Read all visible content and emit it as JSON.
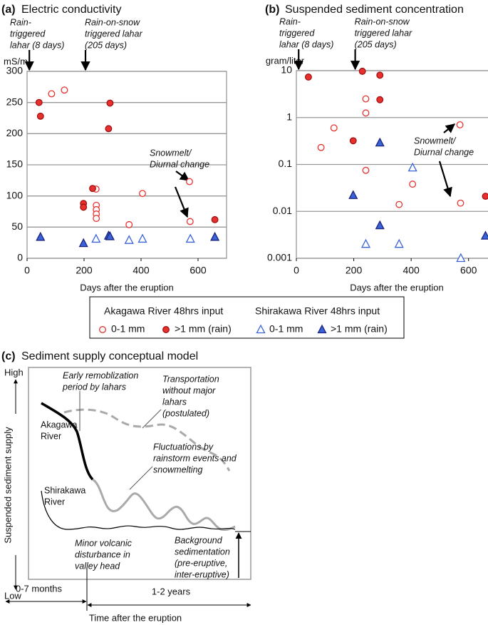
{
  "chart_data": [
    {
      "type": "scatter",
      "panel": "(a)",
      "title": "Electric conductivity",
      "y_label": "mS/m",
      "x_label": "Days after the eruption",
      "xlim": [
        0,
        700
      ],
      "xticks": [
        0,
        200,
        400,
        600
      ],
      "ylim": [
        0,
        300
      ],
      "yticks": [
        0,
        50,
        100,
        150,
        200,
        250,
        300
      ],
      "grid": true,
      "annotations": [
        {
          "text": [
            "Rain-",
            "triggered",
            "lahar (8 days)"
          ],
          "x": 8
        },
        {
          "text": [
            "Rain-on-snow",
            "triggered lahar",
            "(205 days)"
          ],
          "x": 205
        },
        {
          "text": [
            "Snowmelt/",
            "Diurnal change"
          ]
        }
      ],
      "series": [
        {
          "name": "0-1 mm",
          "color": "#e8312f",
          "marker": "circle",
          "filled": false,
          "x": [
            86,
            131,
            242,
            243,
            243,
            243,
            243,
            358,
            405,
            570,
            572
          ],
          "values": [
            264,
            270,
            111,
            85,
            78,
            71,
            64,
            54,
            104,
            123,
            59
          ]
        },
        {
          "name": ">1 mm (rain)",
          "color": "#e8312f",
          "marker": "circle",
          "filled": true,
          "x": [
            42,
            47,
            198,
            198,
            230,
            286,
            291,
            659
          ],
          "values": [
            250,
            228,
            88,
            82,
            112,
            208,
            249,
            62
          ]
        },
        {
          "name": "0-1 mm",
          "color": "#3a63d8",
          "marker": "triangle",
          "filled": false,
          "x": [
            242,
            358,
            405,
            573
          ],
          "values": [
            31,
            29,
            31,
            31
          ]
        },
        {
          "name": ">1 mm (rain)",
          "color": "#3a63d8",
          "marker": "triangle",
          "filled": true,
          "x": [
            47,
            198,
            286,
            291,
            659
          ],
          "values": [
            34,
            24,
            36,
            35,
            34
          ]
        }
      ]
    },
    {
      "type": "scatter",
      "panel": "(b)",
      "title": "Suspended sediment concentration",
      "y_label": "gram/liter",
      "x_label": "Days after the eruption",
      "xlim": [
        0,
        700
      ],
      "xticks": [
        0,
        200,
        400,
        600
      ],
      "ylim": [
        0.001,
        10
      ],
      "yticks": [
        0.001,
        0.01,
        0.1,
        1,
        10
      ],
      "y_scale": "log",
      "grid": true,
      "annotations": [
        {
          "text": [
            "Rain-",
            "triggered",
            "lahar (8 days)"
          ],
          "x": 8
        },
        {
          "text": [
            "Rain-on-snow",
            "triggered lahar",
            "(205 days)"
          ],
          "x": 205
        },
        {
          "text": [
            "Snowmelt/",
            "Diurnal change"
          ]
        }
      ],
      "series": [
        {
          "color": "#e8312f",
          "marker": "circle",
          "filled": false,
          "x": [
            86,
            131,
            242,
            242,
            242,
            358,
            405,
            570,
            572
          ],
          "values": [
            0.23,
            0.6,
            2.5,
            1.25,
            0.075,
            0.014,
            0.038,
            0.7,
            0.015
          ]
        },
        {
          "color": "#e8312f",
          "marker": "circle",
          "filled": true,
          "x": [
            42,
            198,
            230,
            291,
            291,
            659
          ],
          "values": [
            7.3,
            0.32,
            9.7,
            8,
            2.4,
            0.021
          ]
        },
        {
          "color": "#3a63d8",
          "marker": "triangle",
          "filled": false,
          "x": [
            242,
            358,
            405,
            573
          ],
          "values": [
            0.002,
            0.002,
            0.085,
            0.001
          ]
        },
        {
          "color": "#3a63d8",
          "marker": "triangle",
          "filled": true,
          "x": [
            198,
            291,
            291,
            659
          ],
          "values": [
            0.022,
            0.29,
            0.005,
            0.003
          ]
        }
      ]
    }
  ],
  "legend": {
    "groups": [
      "Akagawa River 48hrs input",
      "Shirakawa River 48hrs input"
    ]
  },
  "diagram": {
    "panel": "(c)",
    "title": "Sediment supply conceptual model",
    "y_label": "Suspended sediment supply",
    "high": "High",
    "low": "Low",
    "labels": [
      {
        "text": [
          "Early remoblization",
          "period by lahars"
        ]
      },
      {
        "text": [
          "Transportation",
          "without major",
          "lahars",
          "(postulated)"
        ]
      },
      {
        "text": [
          "Akagawa",
          "River"
        ]
      },
      {
        "text": [
          "Fluctuations by",
          "rainstorm events and",
          "snowmelting"
        ]
      },
      {
        "text": [
          "Shirakawa",
          "River"
        ]
      },
      {
        "text": [
          "Minor volcanic",
          "disturbance in",
          "valley head"
        ]
      },
      {
        "text": [
          "Background",
          "sedimentation",
          "(pre-eruptive,",
          "inter-eruptive)"
        ]
      }
    ],
    "periods": [
      "0-7 months",
      "1-2 years"
    ],
    "x_label": "Time after the eruption"
  }
}
